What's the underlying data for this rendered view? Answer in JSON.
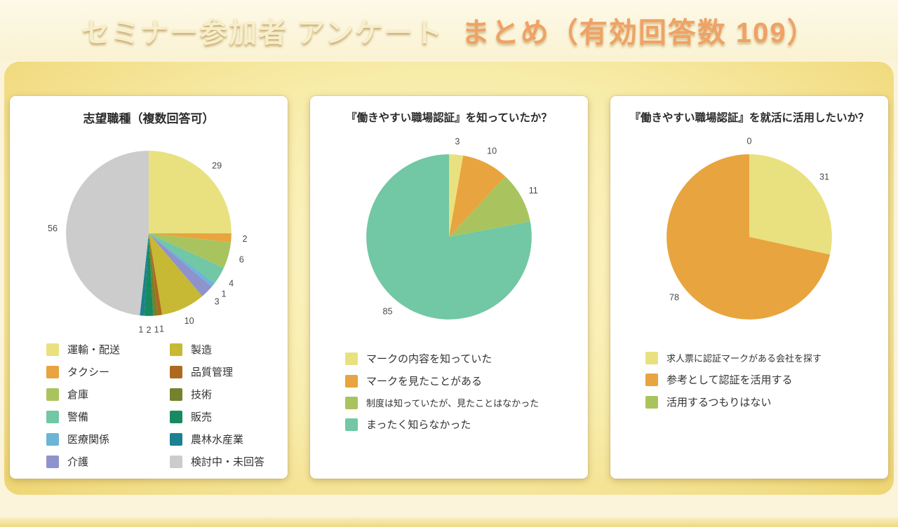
{
  "header": {
    "title_main": "セミナー参加者 アンケート",
    "title_sub": "まとめ（有効回答数 109）"
  },
  "theme": {
    "title_main_color": "#f7eecb",
    "title_sub_color": "#efa266",
    "panel_gold": "#f0d97e",
    "header_bg": "#faf2d2",
    "card_bg": "#ffffff"
  },
  "chart_data": [
    {
      "type": "pie",
      "title": "志望職種（複数回答可）",
      "legend_position": "bottom",
      "legend_columns": 2,
      "labels": [
        "運輸・配送",
        "タクシー",
        "倉庫",
        "警備",
        "医療関係",
        "介護",
        "製造",
        "品質管理",
        "技術",
        "販売",
        "農林水産業",
        "検討中・未回答"
      ],
      "values": [
        29,
        2,
        6,
        4,
        1,
        3,
        10,
        1,
        1,
        2,
        1,
        56
      ],
      "colors": [
        "#e9e17f",
        "#e8a43e",
        "#a9c45e",
        "#72c7a4",
        "#6db5d6",
        "#8e93cc",
        "#c7b934",
        "#ad6a1e",
        "#75812c",
        "#178a60",
        "#1d8090",
        "#cccccc"
      ]
    },
    {
      "type": "pie",
      "title": "『働きやすい職場認証』を知っていたか？",
      "legend_position": "bottom",
      "legend_columns": 1,
      "labels": [
        "マークの内容を知っていた",
        "マークを見たことがある",
        "制度は知っていたが、見たことはなかった",
        "まったく知らなかった"
      ],
      "values": [
        3,
        10,
        11,
        85
      ],
      "colors": [
        "#e9e17f",
        "#e8a43e",
        "#a9c45e",
        "#72c7a4"
      ]
    },
    {
      "type": "pie",
      "title": "『働きやすい職場認証』を就活に活用したいか？",
      "legend_position": "bottom",
      "legend_columns": 1,
      "labels": [
        "求人票に認証マークがある会社を探す",
        "参考として認証を活用する",
        "活用するつもりはない"
      ],
      "values": [
        31,
        78,
        0
      ],
      "colors": [
        "#e9e17f",
        "#e8a43e",
        "#a9c45e"
      ]
    }
  ]
}
